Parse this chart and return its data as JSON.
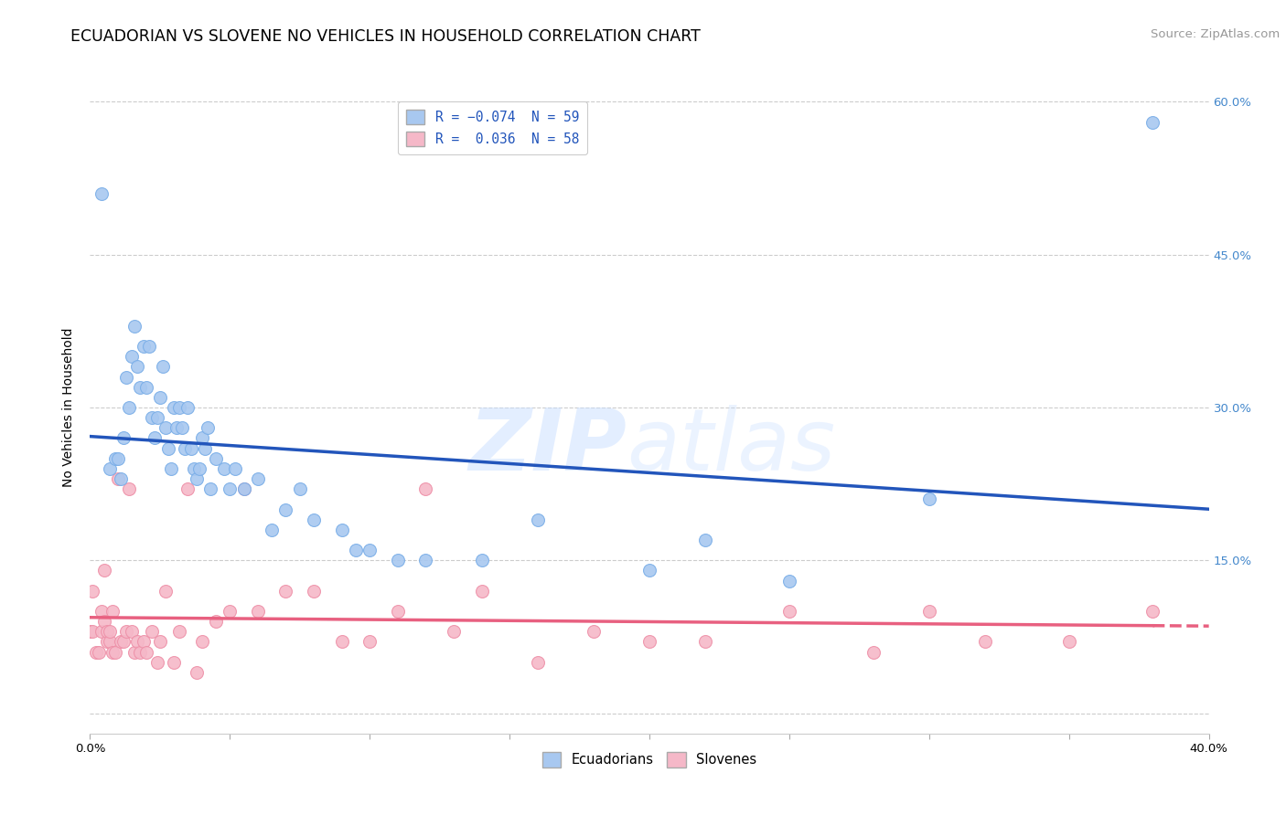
{
  "title": "ECUADORIAN VS SLOVENE NO VEHICLES IN HOUSEHOLD CORRELATION CHART",
  "source": "Source: ZipAtlas.com",
  "ylabel": "No Vehicles in Household",
  "watermark_zip": "ZIP",
  "watermark_atlas": "atlas",
  "xlim": [
    0.0,
    0.4
  ],
  "ylim": [
    -0.02,
    0.62
  ],
  "ecuadorian_color": "#A8C8F0",
  "ecuadorian_edge": "#7AAEE8",
  "slovene_color": "#F5B8C8",
  "slovene_edge": "#EE90A8",
  "ecuadorian_line_color": "#2255BB",
  "slovene_line_color": "#E86080",
  "grid_color": "#CCCCCC",
  "background_color": "#FFFFFF",
  "right_tick_color": "#4488CC",
  "legend_top_color": "#2255BB",
  "source_color": "#999999",
  "title_fontsize": 12.5,
  "axis_label_fontsize": 10,
  "tick_fontsize": 9.5,
  "legend_fontsize": 10.5,
  "source_fontsize": 9.5,
  "ecuadorian_x": [
    0.004,
    0.007,
    0.009,
    0.01,
    0.011,
    0.012,
    0.013,
    0.014,
    0.015,
    0.016,
    0.017,
    0.018,
    0.019,
    0.02,
    0.021,
    0.022,
    0.023,
    0.024,
    0.025,
    0.026,
    0.027,
    0.028,
    0.029,
    0.03,
    0.031,
    0.032,
    0.033,
    0.034,
    0.035,
    0.036,
    0.037,
    0.038,
    0.039,
    0.04,
    0.041,
    0.042,
    0.043,
    0.045,
    0.048,
    0.05,
    0.052,
    0.055,
    0.06,
    0.065,
    0.07,
    0.075,
    0.08,
    0.09,
    0.095,
    0.1,
    0.11,
    0.12,
    0.14,
    0.16,
    0.2,
    0.22,
    0.25,
    0.3,
    0.38
  ],
  "ecuadorian_y": [
    0.51,
    0.24,
    0.25,
    0.25,
    0.23,
    0.27,
    0.33,
    0.3,
    0.35,
    0.38,
    0.34,
    0.32,
    0.36,
    0.32,
    0.36,
    0.29,
    0.27,
    0.29,
    0.31,
    0.34,
    0.28,
    0.26,
    0.24,
    0.3,
    0.28,
    0.3,
    0.28,
    0.26,
    0.3,
    0.26,
    0.24,
    0.23,
    0.24,
    0.27,
    0.26,
    0.28,
    0.22,
    0.25,
    0.24,
    0.22,
    0.24,
    0.22,
    0.23,
    0.18,
    0.2,
    0.22,
    0.19,
    0.18,
    0.16,
    0.16,
    0.15,
    0.15,
    0.15,
    0.19,
    0.14,
    0.17,
    0.13,
    0.21,
    0.58
  ],
  "slovene_x": [
    0.0,
    0.001,
    0.001,
    0.002,
    0.003,
    0.004,
    0.004,
    0.005,
    0.005,
    0.006,
    0.006,
    0.007,
    0.007,
    0.008,
    0.008,
    0.009,
    0.01,
    0.011,
    0.012,
    0.013,
    0.014,
    0.015,
    0.016,
    0.017,
    0.018,
    0.019,
    0.02,
    0.022,
    0.024,
    0.025,
    0.027,
    0.03,
    0.032,
    0.035,
    0.038,
    0.04,
    0.045,
    0.05,
    0.055,
    0.06,
    0.07,
    0.08,
    0.09,
    0.1,
    0.11,
    0.12,
    0.13,
    0.14,
    0.16,
    0.18,
    0.2,
    0.22,
    0.25,
    0.28,
    0.3,
    0.32,
    0.35,
    0.38
  ],
  "slovene_y": [
    0.08,
    0.08,
    0.12,
    0.06,
    0.06,
    0.1,
    0.08,
    0.14,
    0.09,
    0.07,
    0.08,
    0.07,
    0.08,
    0.1,
    0.06,
    0.06,
    0.23,
    0.07,
    0.07,
    0.08,
    0.22,
    0.08,
    0.06,
    0.07,
    0.06,
    0.07,
    0.06,
    0.08,
    0.05,
    0.07,
    0.12,
    0.05,
    0.08,
    0.22,
    0.04,
    0.07,
    0.09,
    0.1,
    0.22,
    0.1,
    0.12,
    0.12,
    0.07,
    0.07,
    0.1,
    0.22,
    0.08,
    0.12,
    0.05,
    0.08,
    0.07,
    0.07,
    0.1,
    0.06,
    0.1,
    0.07,
    0.07,
    0.1
  ],
  "ecu_line_x0": 0.0,
  "ecu_line_x1": 0.4,
  "slo_line_x0": 0.0,
  "slo_line_solid_end": 0.38,
  "slo_line_x1": 0.4,
  "x_tick_positions": [
    0.0,
    0.05,
    0.1,
    0.15,
    0.2,
    0.25,
    0.3,
    0.35,
    0.4
  ],
  "y_tick_positions": [
    0.0,
    0.15,
    0.3,
    0.45,
    0.6
  ]
}
